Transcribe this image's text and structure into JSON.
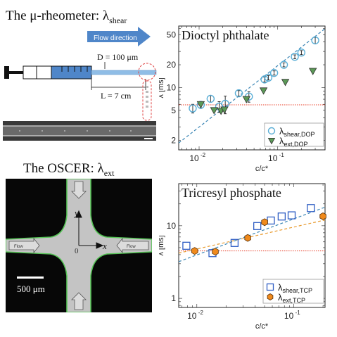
{
  "figure": {
    "rheometer_title": "The μ-rheometer: λ",
    "rheometer_title_sub": "shear",
    "flow_direction": "Flow direction",
    "diameter": "D = 100 μm",
    "length": "L = 7 cm",
    "oscer_title": "The OSCER: λ",
    "oscer_title_sub": "ext",
    "axis_x_sym": "x",
    "axis_y_sym": "y",
    "origin": "0",
    "flow_label": "Flow",
    "scale_bar": "500 μm"
  },
  "chart_data": [
    {
      "type": "scatter",
      "title": "Dioctyl phthalate",
      "xlabel": "c/c*",
      "ylabel": "λ [ms]",
      "xscale": "log",
      "yscale": "log",
      "xlim": [
        0.0055,
        0.4
      ],
      "ylim": [
        1.5,
        65
      ],
      "yticks": [
        {
          "value": 2,
          "label": "2"
        },
        {
          "value": 5,
          "label": "5"
        },
        {
          "value": 10,
          "label": "10"
        },
        {
          "value": 20,
          "label": "20"
        },
        {
          "value": 50,
          "label": "50"
        }
      ],
      "xticks": [
        {
          "value": 0.01,
          "label": "10",
          "exp": "-2"
        },
        {
          "value": 0.1,
          "label": "10",
          "exp": "-1"
        }
      ],
      "legend_position": "bottom-right",
      "hline": {
        "y": 5.9,
        "color": "#e8402a"
      },
      "fit": {
        "x": [
          0.0055,
          0.4
        ],
        "y": [
          1.85,
          60
        ],
        "color": "#3b86b5"
      },
      "series": [
        {
          "name": "λ",
          "name_sub": "shear,DOP",
          "marker": "circle",
          "color": "#5aaed6",
          "x": [
            0.0083,
            0.0105,
            0.014,
            0.018,
            0.0215,
            0.032,
            0.043,
            0.068,
            0.076,
            0.09,
            0.12,
            0.165,
            0.2,
            0.3
          ],
          "y": [
            5.3,
            5.9,
            7.1,
            5.6,
            6.1,
            8.4,
            7.6,
            12.8,
            13.5,
            15.6,
            20.0,
            25.5,
            29.0,
            42.0
          ],
          "err": [
            0.7,
            0.5,
            0.7,
            0.9,
            1.6,
            0.7,
            1.2,
            1.0,
            0.9,
            1.0,
            1.2,
            1.5,
            1.8,
            4.0
          ]
        },
        {
          "name": "λ",
          "name_sub": "ext,DOP",
          "marker": "triangle-down",
          "color": "#5b9a57",
          "x": [
            0.0105,
            0.0155,
            0.019,
            0.021,
            0.04,
            0.066,
            0.125,
            0.28
          ],
          "y": [
            6.0,
            5.0,
            4.9,
            5.1,
            7.0,
            9.1,
            11.8,
            16.5
          ]
        }
      ]
    },
    {
      "type": "scatter",
      "title": "Tricresyl phosphate",
      "xlabel": "c/c*",
      "ylabel": "λ [ms]",
      "xscale": "log",
      "yscale": "log",
      "xlim": [
        0.0065,
        0.21
      ],
      "ylim": [
        0.75,
        38
      ],
      "yticks": [
        {
          "value": 1,
          "label": "1"
        },
        {
          "value": 10,
          "label": "10"
        }
      ],
      "xticks": [
        {
          "value": 0.01,
          "label": "10",
          "exp": "-2"
        },
        {
          "value": 0.1,
          "label": "10",
          "exp": "-1"
        }
      ],
      "legend_position": "bottom-right",
      "hline": {
        "y": 4.5,
        "color": "#e8402a"
      },
      "fit": {
        "x": [
          0.0065,
          0.21
        ],
        "y": [
          3.2,
          18.0
        ],
        "color": "#3b86b5"
      },
      "fit_secondary": {
        "x": [
          0.0065,
          0.21
        ],
        "y": [
          4.2,
          12.0
        ],
        "color": "#e89a2e"
      },
      "series": [
        {
          "name": "λ",
          "name_sub": "shear,TCP",
          "marker": "square",
          "color": "#2f5ec4",
          "x": [
            0.0078,
            0.0145,
            0.0245,
            0.042,
            0.058,
            0.075,
            0.095,
            0.15
          ],
          "y": [
            5.3,
            4.2,
            5.8,
            9.9,
            11.8,
            13.4,
            13.9,
            17.5
          ]
        },
        {
          "name": "λ",
          "name_sub": "ext,TCP",
          "marker": "hexagon",
          "color": "#f08a1c",
          "x": [
            0.0095,
            0.0155,
            0.0335,
            0.05,
            0.2
          ],
          "y": [
            4.5,
            4.4,
            6.8,
            11.2,
            13.5
          ]
        }
      ]
    }
  ]
}
